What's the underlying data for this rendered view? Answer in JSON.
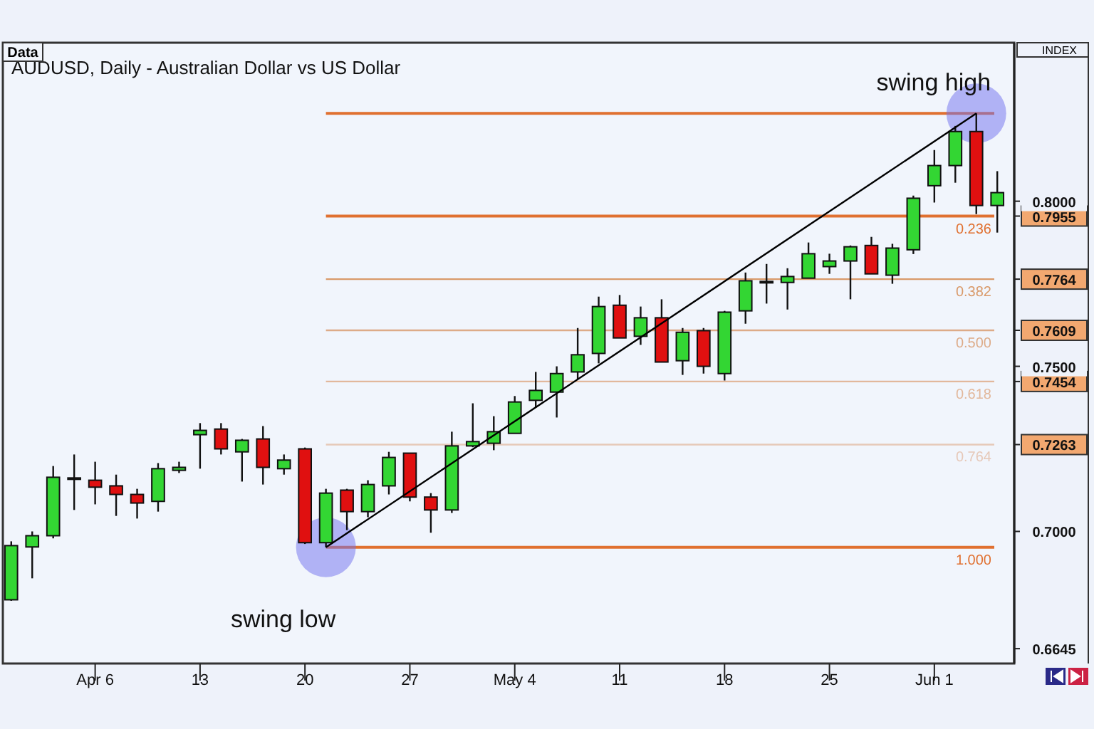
{
  "chart_data": {
    "type": "candlestick",
    "title": "AUDUSD, Daily - Australian Dollar vs US Dollar",
    "categories": [
      null,
      null,
      null,
      null,
      "Apr 6",
      null,
      null,
      null,
      null,
      "13",
      null,
      null,
      null,
      null,
      "20",
      null,
      null,
      null,
      null,
      "27",
      null,
      null,
      null,
      null,
      "May 4",
      null,
      null,
      null,
      null,
      "11",
      null,
      null,
      null,
      null,
      "18",
      null,
      null,
      null,
      null,
      "25",
      null,
      null,
      null,
      null,
      "Jun 1",
      null,
      null,
      null
    ],
    "ohlc": [
      [
        0.6793,
        0.697,
        0.679,
        0.6957
      ],
      [
        0.6953,
        0.7,
        0.6858,
        0.6987
      ],
      [
        0.6987,
        0.7198,
        0.6979,
        0.7164
      ],
      [
        0.716,
        0.7233,
        0.7065,
        0.7162
      ],
      [
        0.7155,
        0.7211,
        0.7082,
        0.7134
      ],
      [
        0.7138,
        0.7172,
        0.7047,
        0.7112
      ],
      [
        0.7112,
        0.7129,
        0.7039,
        0.7086
      ],
      [
        0.7091,
        0.7207,
        0.706,
        0.719
      ],
      [
        0.7185,
        0.7211,
        0.7177,
        0.7194
      ],
      [
        0.7293,
        0.7328,
        0.719,
        0.7306
      ],
      [
        0.731,
        0.7328,
        0.7233,
        0.725
      ],
      [
        0.7241,
        0.728,
        0.7151,
        0.7276
      ],
      [
        0.728,
        0.7319,
        0.7142,
        0.7194
      ],
      [
        0.719,
        0.7233,
        0.7172,
        0.7216
      ],
      [
        0.725,
        0.7254,
        0.6962,
        0.6966
      ],
      [
        0.6966,
        0.7129,
        0.6952,
        0.7116
      ],
      [
        0.7125,
        0.7129,
        0.7004,
        0.706
      ],
      [
        0.706,
        0.7155,
        0.7043,
        0.7142
      ],
      [
        0.7138,
        0.7241,
        0.7112,
        0.7224
      ],
      [
        0.7237,
        0.7237,
        0.7091,
        0.7104
      ],
      [
        0.7104,
        0.7116,
        0.6996,
        0.7065
      ],
      [
        0.7065,
        0.7302,
        0.7056,
        0.7259
      ],
      [
        0.7259,
        0.7388,
        0.7255,
        0.7272
      ],
      [
        0.7267,
        0.7349,
        0.7246,
        0.7302
      ],
      [
        0.7297,
        0.741,
        0.7297,
        0.7392
      ],
      [
        0.7397,
        0.7483,
        0.7375,
        0.7427
      ],
      [
        0.7422,
        0.75,
        0.7345,
        0.7478
      ],
      [
        0.7483,
        0.7616,
        0.7461,
        0.7535
      ],
      [
        0.7539,
        0.7711,
        0.7509,
        0.7681
      ],
      [
        0.7685,
        0.7716,
        0.7586,
        0.7586
      ],
      [
        0.7591,
        0.7681,
        0.7565,
        0.7647
      ],
      [
        0.7647,
        0.7703,
        0.7513,
        0.7513
      ],
      [
        0.7517,
        0.7616,
        0.7474,
        0.7603
      ],
      [
        0.7608,
        0.7616,
        0.7478,
        0.75
      ],
      [
        0.7478,
        0.7668,
        0.7457,
        0.7664
      ],
      [
        0.7668,
        0.7784,
        0.7629,
        0.7759
      ],
      [
        0.7754,
        0.781,
        0.769,
        0.7757
      ],
      [
        0.7754,
        0.7797,
        0.7672,
        0.7772
      ],
      [
        0.7767,
        0.7875,
        0.7767,
        0.7841
      ],
      [
        0.7802,
        0.7841,
        0.778,
        0.7819
      ],
      [
        0.7819,
        0.7866,
        0.7703,
        0.7862
      ],
      [
        0.7866,
        0.7892,
        0.778,
        0.778
      ],
      [
        0.7776,
        0.7871,
        0.775,
        0.7858
      ],
      [
        0.7853,
        0.8017,
        0.784,
        0.8009
      ],
      [
        0.8047,
        0.8155,
        0.7996,
        0.8108
      ],
      [
        0.8108,
        0.8228,
        0.8056,
        0.8211
      ],
      [
        0.8211,
        0.8266,
        0.7961,
        0.7987
      ],
      [
        0.7987,
        0.8091,
        0.7905,
        0.8026
      ]
    ],
    "colors": [
      "#33d633",
      "#33d633",
      "#33d633",
      "#33d633",
      "#e01010",
      "#e01010",
      "#e01010",
      "#33d633",
      "#33d633",
      "#33d633",
      "#e01010",
      "#33d633",
      "#e01010",
      "#33d633",
      "#e01010",
      "#33d633",
      "#e01010",
      "#33d633",
      "#33d633",
      "#e01010",
      "#e01010",
      "#33d633",
      "#33d633",
      "#33d633",
      "#33d633",
      "#33d633",
      "#33d633",
      "#33d633",
      "#33d633",
      "#e01010",
      "#33d633",
      "#e01010",
      "#33d633",
      "#e01010",
      "#33d633",
      "#33d633",
      "#33d633",
      "#33d633",
      "#33d633",
      "#33d633",
      "#33d633",
      "#e01010",
      "#33d633",
      "#33d633",
      "#33d633",
      "#33d633",
      "#e01010",
      "#33d633"
    ],
    "series": [
      {
        "type": "line",
        "color": "#000000",
        "marker": "circle",
        "values": [
          null,
          null,
          null,
          null,
          null,
          null,
          null,
          null,
          null,
          null,
          null,
          null,
          null,
          null,
          null,
          0.6952,
          null,
          null,
          null,
          null,
          null,
          null,
          null,
          null,
          null,
          null,
          null,
          null,
          null,
          null,
          null,
          null,
          null,
          null,
          null,
          null,
          null,
          null,
          null,
          null,
          null,
          null,
          null,
          null,
          null,
          null,
          0.8266,
          null
        ]
      }
    ],
    "ylim": [
      0.66,
      0.848
    ],
    "yticks": [
      {
        "value": 0.6645,
        "label": "0.6645"
      },
      {
        "value": 0.7,
        "label": "0.7000"
      },
      {
        "value": 0.7263,
        "label": "0.7263"
      },
      {
        "value": 0.7454,
        "label": "0.7454"
      },
      {
        "value": 0.75,
        "label": "0.7500"
      },
      {
        "value": 0.7609,
        "label": "0.7609"
      },
      {
        "value": 0.7764,
        "label": "0.7764"
      },
      {
        "value": 0.7955,
        "label": "0.7955"
      },
      {
        "value": 0.8,
        "label": "0.8000"
      }
    ],
    "ref_lines": [
      {
        "axis": "y",
        "value": 0.8266,
        "color": "#e07030"
      },
      {
        "axis": "y",
        "value": 0.7955,
        "color": "#e07030"
      },
      {
        "axis": "y",
        "value": 0.7764,
        "color": "#d99a6a"
      },
      {
        "axis": "y",
        "value": 0.7609,
        "color": "#ddab88"
      },
      {
        "axis": "y",
        "value": 0.7454,
        "color": "#e2b89c"
      },
      {
        "axis": "y",
        "value": 0.7263,
        "color": "#e6c8b8"
      },
      {
        "axis": "y",
        "value": 0.6952,
        "color": "#e07030"
      }
    ],
    "annotations": [
      "Data",
      "INDEX",
      "swing high",
      "swing low",
      {
        "text": "0.236",
        "y": 0.7955
      },
      {
        "text": "0.382",
        "y": 0.7764
      },
      {
        "text": "0.500",
        "y": 0.7609
      },
      {
        "text": "0.618",
        "y": 0.7454
      },
      {
        "text": "0.764",
        "y": 0.7263
      },
      {
        "text": "1.000",
        "y": 0.6952
      }
    ]
  }
}
